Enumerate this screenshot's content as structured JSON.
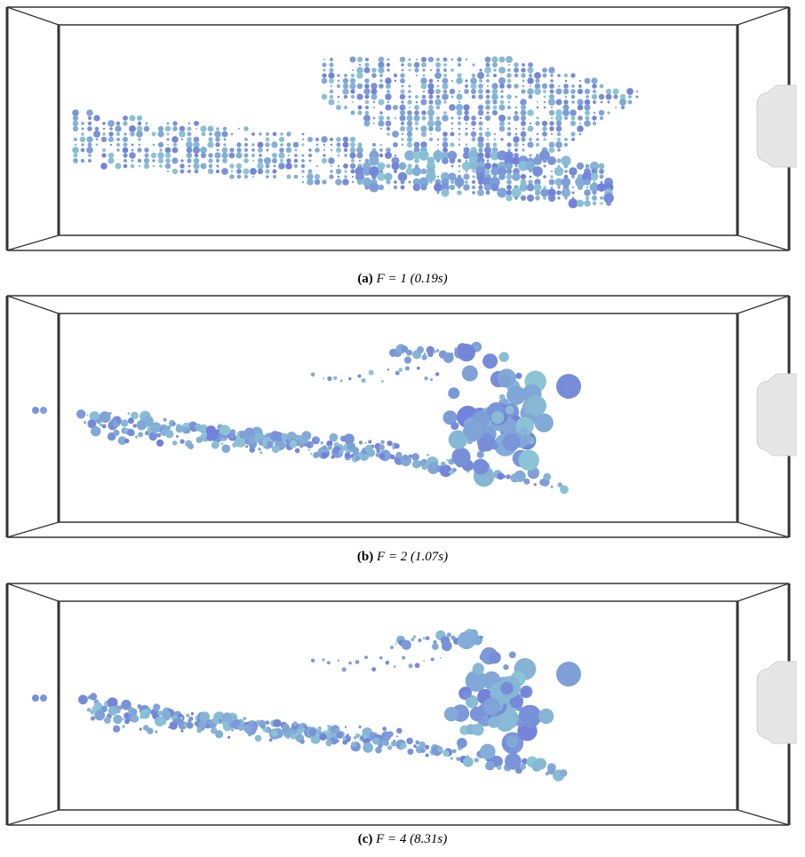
{
  "panels": [
    {
      "label": "(a)",
      "caption": "F = 1 (0.19s)"
    },
    {
      "label": "(b)",
      "caption": "F = 2 (1.07s)"
    },
    {
      "label": "(c)",
      "caption": "F = 4 (8.31s)"
    }
  ]
}
